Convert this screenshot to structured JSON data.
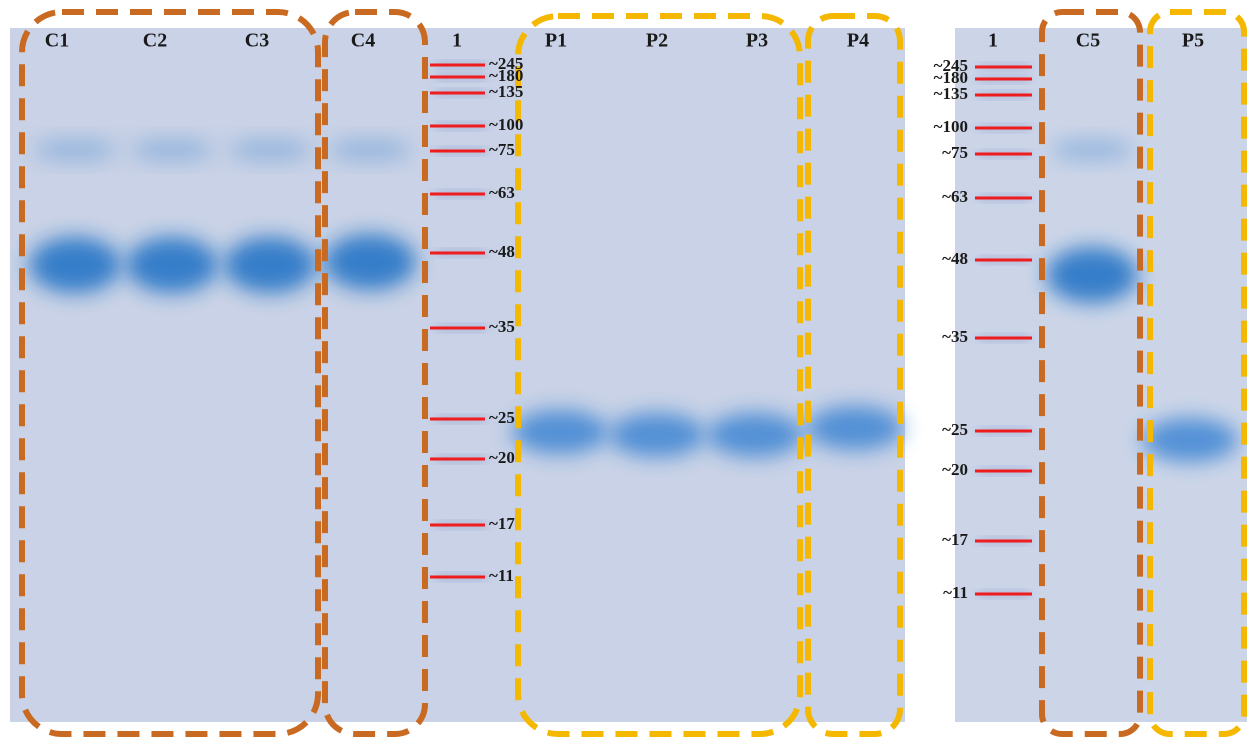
{
  "left_gel": {
    "lanes": [
      "C1",
      "C2",
      "C3",
      "C4",
      "1",
      "P1",
      "P2",
      "P3",
      "P4"
    ],
    "markers": [
      "~245",
      "~180",
      "~135",
      "~100",
      "~75",
      "~63",
      "~48",
      "~35",
      "~25",
      "~20",
      "~17",
      "~11"
    ]
  },
  "right_gel": {
    "lanes": [
      "1",
      "C5",
      "P5"
    ],
    "markers": [
      "~245",
      "~180",
      "~135",
      "~100",
      "~75",
      "~63",
      "~48",
      "~35",
      "~25",
      "~20",
      "~17",
      "~11"
    ]
  }
}
